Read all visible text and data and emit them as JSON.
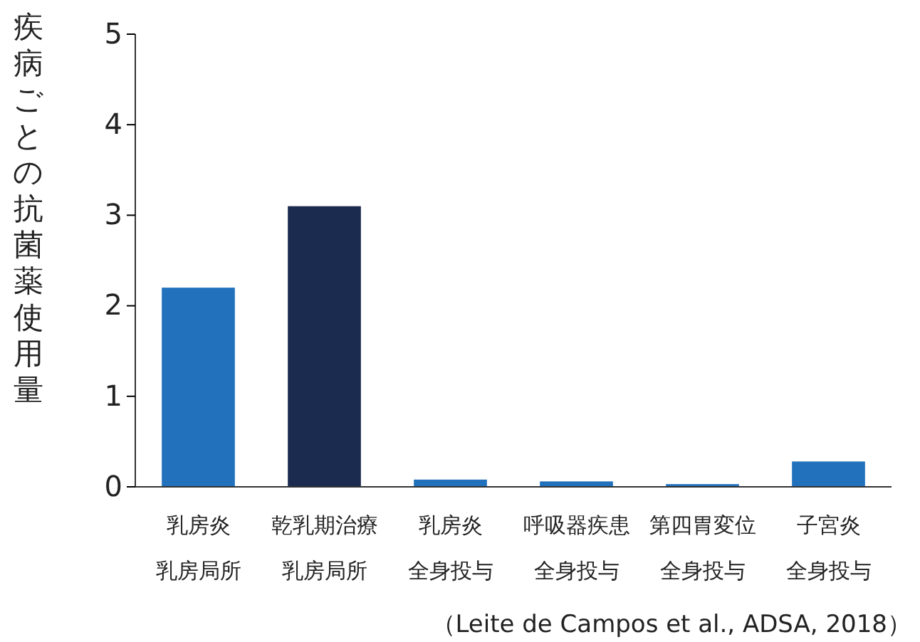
{
  "chart_data": {
    "type": "bar",
    "ylabel": "疾病ごとの抗菌薬使用量",
    "categories": [
      "乳房炎乳房局所",
      "乾乳期治療乳房局所",
      "乳房炎全身投与",
      "呼吸器疾患全身投与",
      "第四胃変位全身投与",
      "子宮炎全身投与"
    ],
    "values": [
      2.2,
      3.1,
      0.08,
      0.06,
      0.03,
      0.28
    ],
    "colors": [
      "#2271bc",
      "#1b2b4f",
      "#2271bc",
      "#2271bc",
      "#2271bc",
      "#2271bc"
    ],
    "ylim": [
      0,
      5
    ],
    "yticks": [
      0,
      1,
      2,
      3,
      4,
      5
    ],
    "annotations": [
      "（Leite de Campos et al., ADSA, 2018）"
    ],
    "grid": false
  }
}
